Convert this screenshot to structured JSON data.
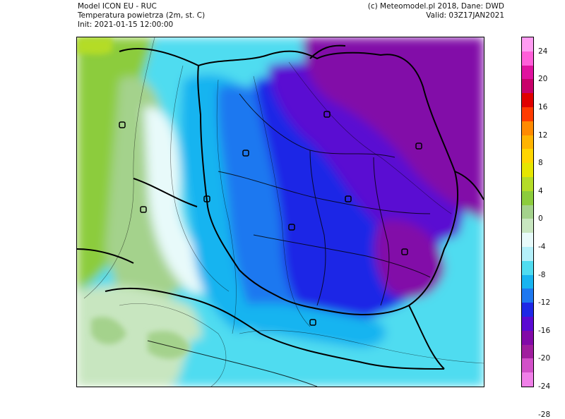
{
  "header": {
    "model": "Model ICON EU - RUC",
    "variable": "Temperatura powietrza (2m, st. C)",
    "init": "Init: 2021-01-15 12:00:00",
    "copyright": "(c) Meteomodel.pl 2018, Dane: DWD",
    "valid": "Valid: 03Z17JAN2021"
  },
  "legend": {
    "bins": [
      {
        "color": "#ff9cf2"
      },
      {
        "color": "#ff5fd9"
      },
      {
        "color": "#e0129f"
      },
      {
        "color": "#c8006a"
      },
      {
        "color": "#e00000"
      },
      {
        "color": "#ff3b00"
      },
      {
        "color": "#ff8a00"
      },
      {
        "color": "#ffb400"
      },
      {
        "color": "#ffd600"
      },
      {
        "color": "#e6e600"
      },
      {
        "color": "#b4dc28"
      },
      {
        "color": "#8ccc3c"
      },
      {
        "color": "#a4d28c"
      },
      {
        "color": "#c8e6c0"
      },
      {
        "color": "#e8fafa"
      },
      {
        "color": "#b4f0fa"
      },
      {
        "color": "#50dcf0"
      },
      {
        "color": "#18b4f0"
      },
      {
        "color": "#1e78f0"
      },
      {
        "color": "#1e28e6"
      },
      {
        "color": "#5a0ad2"
      },
      {
        "color": "#820aa8"
      },
      {
        "color": "#a01e9e"
      },
      {
        "color": "#d250c8"
      },
      {
        "color": "#f080e8"
      }
    ],
    "labels": [
      "24",
      "20",
      "16",
      "12",
      "8",
      "4",
      "0",
      "-4",
      "-8",
      "-12",
      "-16",
      "-20",
      "-24",
      "-28"
    ]
  },
  "map": {
    "temp_colors": {
      "green": "#8ccc3c",
      "pale_green": "#a4d28c",
      "lighter_green": "#c8e6c0",
      "white_blue": "#e8fafa",
      "pale_cyan": "#b4f0fa",
      "cyan": "#50dcf0",
      "light_blue": "#18b4f0",
      "blue": "#1e78f0",
      "deep_blue": "#1e28e6",
      "indigo": "#5a0ad2",
      "purple": "#820aa8"
    }
  }
}
